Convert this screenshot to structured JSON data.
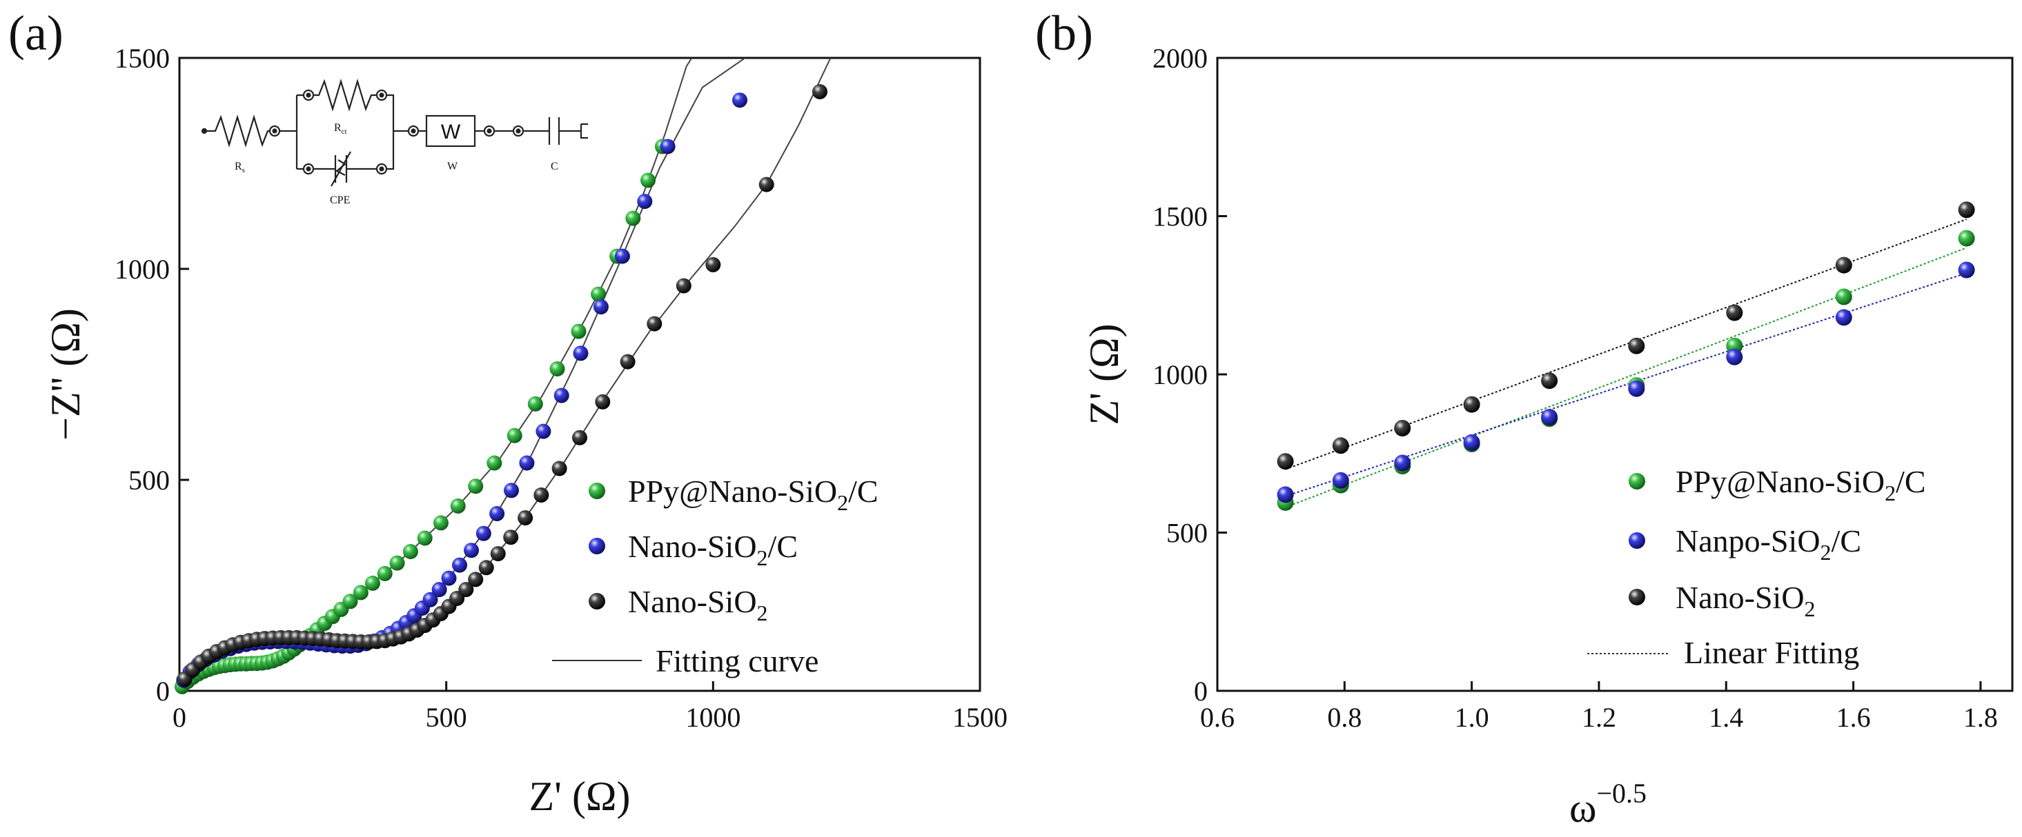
{
  "colors": {
    "green": "#1a9a2a",
    "blue": "#1e22a8",
    "black": "#111111",
    "axis": "#111111"
  },
  "panels": {
    "a": {
      "label": "(a)",
      "circuit": {
        "rs": "R",
        "rs_sub": "s",
        "rct": "R",
        "rct_sub": "ct",
        "cpe": "CPE",
        "w_box": "W",
        "w": "W",
        "c": "C"
      }
    },
    "b": {
      "label": "(b)"
    }
  },
  "chart_data": [
    {
      "id": "nyquist",
      "type": "scatter",
      "title": "",
      "xlabel": "Z' (Ω)",
      "ylabel": "−Z'' (Ω)",
      "xlim": [
        0,
        1500
      ],
      "ylim": [
        0,
        1500
      ],
      "xticks": [
        0,
        500,
        1000,
        1500
      ],
      "yticks": [
        0,
        500,
        1000,
        1500
      ],
      "legend_position": "bottom-right",
      "series": [
        {
          "name": "PPy@Nano-SiO2/C",
          "legend_main": "PPy@Nano-SiO",
          "legend_sub": "2",
          "legend_tail": "/C",
          "color": "green",
          "points": [
            [
              5,
              10
            ],
            [
              15,
              22
            ],
            [
              25,
              32
            ],
            [
              35,
              40
            ],
            [
              45,
              46
            ],
            [
              55,
              51
            ],
            [
              65,
              55
            ],
            [
              75,
              58
            ],
            [
              85,
              60
            ],
            [
              95,
              62
            ],
            [
              105,
              63
            ],
            [
              115,
              64
            ],
            [
              125,
              64
            ],
            [
              135,
              65
            ],
            [
              145,
              65
            ],
            [
              155,
              66
            ],
            [
              165,
              68
            ],
            [
              175,
              71
            ],
            [
              185,
              76
            ],
            [
              195,
              82
            ],
            [
              205,
              90
            ],
            [
              215,
              99
            ],
            [
              225,
              109
            ],
            [
              235,
              120
            ],
            [
              245,
              131
            ],
            [
              258,
              145
            ],
            [
              272,
              160
            ],
            [
              287,
              176
            ],
            [
              303,
              193
            ],
            [
              320,
              212
            ],
            [
              340,
              233
            ],
            [
              362,
              255
            ],
            [
              385,
              278
            ],
            [
              408,
              303
            ],
            [
              433,
              330
            ],
            [
              460,
              362
            ],
            [
              490,
              398
            ],
            [
              522,
              438
            ],
            [
              555,
              485
            ],
            [
              590,
              540
            ],
            [
              628,
              605
            ],
            [
              667,
              680
            ],
            [
              708,
              763
            ],
            [
              748,
              852
            ],
            [
              785,
              940
            ],
            [
              820,
              1030
            ],
            [
              850,
              1120
            ],
            [
              878,
              1210
            ],
            [
              905,
              1290
            ]
          ],
          "fit": [
            [
              2,
              5
            ],
            [
              20,
              25
            ],
            [
              50,
              45
            ],
            [
              100,
              60
            ],
            [
              150,
              65
            ],
            [
              200,
              85
            ],
            [
              260,
              145
            ],
            [
              340,
              232
            ],
            [
              430,
              327
            ],
            [
              520,
              435
            ],
            [
              600,
              550
            ],
            [
              680,
              700
            ],
            [
              760,
              880
            ],
            [
              820,
              1030
            ],
            [
              870,
              1180
            ],
            [
              910,
              1320
            ],
            [
              950,
              1480
            ],
            [
              960,
              1500
            ]
          ]
        },
        {
          "name": "Nano-SiO2/C",
          "legend_main": "Nano-SiO",
          "legend_sub": "2",
          "legend_tail": "/C",
          "color": "blue",
          "points": [
            [
              8,
              25
            ],
            [
              20,
              45
            ],
            [
              35,
              62
            ],
            [
              50,
              75
            ],
            [
              65,
              85
            ],
            [
              80,
              94
            ],
            [
              95,
              100
            ],
            [
              110,
              106
            ],
            [
              125,
              110
            ],
            [
              140,
              113
            ],
            [
              155,
              115
            ],
            [
              170,
              116
            ],
            [
              185,
              117
            ],
            [
              200,
              117
            ],
            [
              215,
              116
            ],
            [
              230,
              115
            ],
            [
              245,
              113
            ],
            [
              260,
              111
            ],
            [
              275,
              109
            ],
            [
              290,
              107
            ],
            [
              305,
              106
            ],
            [
              320,
              106
            ],
            [
              335,
              108
            ],
            [
              350,
              112
            ],
            [
              365,
              118
            ],
            [
              380,
              126
            ],
            [
              395,
              136
            ],
            [
              410,
              148
            ],
            [
              425,
              162
            ],
            [
              440,
              178
            ],
            [
              455,
              196
            ],
            [
              470,
              216
            ],
            [
              487,
              240
            ],
            [
              505,
              267
            ],
            [
              525,
              298
            ],
            [
              547,
              333
            ],
            [
              570,
              373
            ],
            [
              595,
              420
            ],
            [
              622,
              475
            ],
            [
              651,
              540
            ],
            [
              682,
              615
            ],
            [
              716,
              700
            ],
            [
              752,
              800
            ],
            [
              790,
              910
            ],
            [
              830,
              1030
            ],
            [
              872,
              1160
            ],
            [
              915,
              1290
            ],
            [
              1050,
              1400
            ]
          ],
          "fit": [
            [
              2,
              10
            ],
            [
              30,
              55
            ],
            [
              80,
              92
            ],
            [
              150,
              113
            ],
            [
              220,
              116
            ],
            [
              300,
              106
            ],
            [
              360,
              115
            ],
            [
              420,
              158
            ],
            [
              500,
              260
            ],
            [
              580,
              390
            ],
            [
              660,
              560
            ],
            [
              740,
              770
            ],
            [
              820,
              1000
            ],
            [
              900,
              1240
            ],
            [
              980,
              1430
            ],
            [
              1060,
              1500
            ]
          ]
        },
        {
          "name": "Nano-SiO2",
          "legend_main": "Nano-SiO",
          "legend_sub": "2",
          "legend_tail": "",
          "color": "black",
          "points": [
            [
              10,
              28
            ],
            [
              25,
              50
            ],
            [
              40,
              68
            ],
            [
              55,
              82
            ],
            [
              70,
              93
            ],
            [
              85,
              102
            ],
            [
              100,
              109
            ],
            [
              115,
              115
            ],
            [
              130,
              119
            ],
            [
              145,
              122
            ],
            [
              160,
              124
            ],
            [
              175,
              125
            ],
            [
              190,
              126
            ],
            [
              205,
              126
            ],
            [
              220,
              126
            ],
            [
              235,
              125
            ],
            [
              250,
              124
            ],
            [
              265,
              123
            ],
            [
              280,
              121
            ],
            [
              295,
              119
            ],
            [
              310,
              118
            ],
            [
              325,
              117
            ],
            [
              340,
              116
            ],
            [
              355,
              116
            ],
            [
              370,
              117
            ],
            [
              385,
              119
            ],
            [
              400,
              123
            ],
            [
              415,
              128
            ],
            [
              430,
              135
            ],
            [
              445,
              144
            ],
            [
              460,
              155
            ],
            [
              475,
              168
            ],
            [
              490,
              183
            ],
            [
              505,
              200
            ],
            [
              520,
              219
            ],
            [
              537,
              240
            ],
            [
              555,
              264
            ],
            [
              575,
              292
            ],
            [
              597,
              325
            ],
            [
              621,
              364
            ],
            [
              648,
              410
            ],
            [
              678,
              464
            ],
            [
              712,
              527
            ],
            [
              750,
              600
            ],
            [
              793,
              685
            ],
            [
              840,
              780
            ],
            [
              890,
              870
            ],
            [
              945,
              960
            ],
            [
              1000,
              1010
            ],
            [
              1100,
              1200
            ],
            [
              1200,
              1420
            ]
          ],
          "fit": [
            [
              2,
              10
            ],
            [
              40,
              68
            ],
            [
              100,
              109
            ],
            [
              180,
              125
            ],
            [
              260,
              123
            ],
            [
              340,
              116
            ],
            [
              400,
              123
            ],
            [
              480,
              172
            ],
            [
              560,
              270
            ],
            [
              640,
              395
            ],
            [
              720,
              540
            ],
            [
              800,
              700
            ],
            [
              880,
              850
            ],
            [
              960,
              980
            ],
            [
              1040,
              1100
            ],
            [
              1100,
              1200
            ],
            [
              1160,
              1340
            ],
            [
              1220,
              1500
            ]
          ]
        }
      ],
      "fit_legend": "Fitting curve"
    },
    {
      "id": "warburg",
      "type": "scatter",
      "title": "",
      "xlabel": "ω",
      "xlabel_sup": "−0.5",
      "ylabel": "Z' (Ω)",
      "xlim": [
        0.6,
        1.85
      ],
      "ylim": [
        0,
        2000
      ],
      "xticks": [
        0.6,
        0.8,
        1.0,
        1.2,
        1.4,
        1.6,
        1.8
      ],
      "xtick_labels": [
        "0.6",
        "0.8",
        "1.0",
        "1.2",
        "1.4",
        "1.6",
        "1.8"
      ],
      "yticks": [
        0,
        500,
        1000,
        1500,
        2000
      ],
      "legend_position": "bottom-right",
      "x": [
        0.707,
        0.794,
        0.891,
        1.0,
        1.122,
        1.259,
        1.413,
        1.585,
        1.778
      ],
      "series": [
        {
          "name": "PPy@Nano-SiO2/C",
          "legend_main": "PPy@Nano-SiO",
          "legend_sub": "2",
          "legend_tail": "/C",
          "color": "green",
          "values": [
            595,
            650,
            710,
            780,
            860,
            965,
            1090,
            1245,
            1430
          ],
          "fit": [
            [
              0.707,
              580
            ],
            [
              1.778,
              1400
            ]
          ]
        },
        {
          "name": "Nanpo-SiO2/C",
          "legend_main": "Nanpo-SiO",
          "legend_sub": "2",
          "legend_tail": "/C",
          "color": "blue",
          "values": [
            620,
            665,
            720,
            785,
            865,
            955,
            1055,
            1180,
            1330
          ],
          "fit": [
            [
              0.707,
              615
            ],
            [
              1.778,
              1320
            ]
          ]
        },
        {
          "name": "Nano-SiO2",
          "legend_main": "Nano-SiO",
          "legend_sub": "2",
          "legend_tail": "",
          "color": "black",
          "values": [
            725,
            775,
            830,
            905,
            980,
            1090,
            1195,
            1345,
            1520
          ],
          "fit": [
            [
              0.707,
              700
            ],
            [
              1.778,
              1490
            ]
          ]
        }
      ],
      "fit_legend": "Linear Fitting"
    }
  ]
}
